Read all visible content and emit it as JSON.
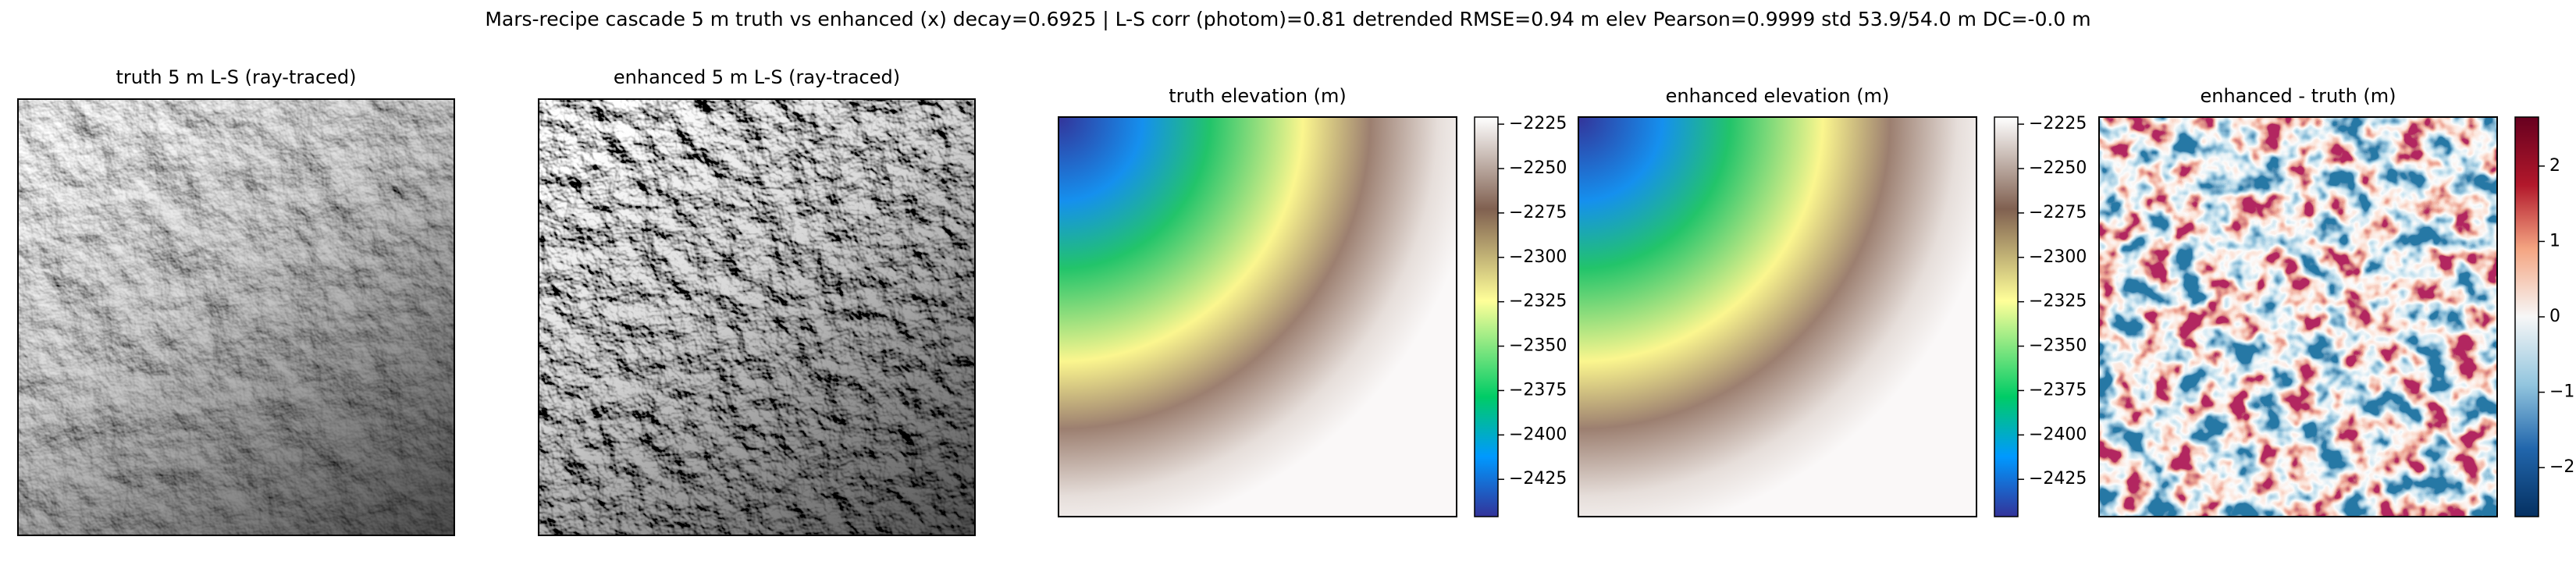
{
  "title": "Mars-recipe cascade 5 m truth vs enhanced (x) decay=0.6925  |  L-S corr (photom)=0.81  detrended RMSE=0.94 m  elev Pearson=0.9999  std 53.9/54.0 m  DC=-0.0 m",
  "panels": [
    {
      "title": "truth 5 m L-S (ray-traced)"
    },
    {
      "title": "enhanced 5 m L-S (ray-traced)"
    },
    {
      "title": "truth elevation (m)"
    },
    {
      "title": "enhanced elevation (m)"
    },
    {
      "title": "enhanced - truth (m)"
    }
  ],
  "colorbars": [
    {
      "lim": [
        -2446,
        -2221
      ],
      "ticks": [
        {
          "value": -2225,
          "label": "−2225"
        },
        {
          "value": -2250,
          "label": "−2250"
        },
        {
          "value": -2275,
          "label": "−2275"
        },
        {
          "value": -2300,
          "label": "−2300"
        },
        {
          "value": -2325,
          "label": "−2325"
        },
        {
          "value": -2350,
          "label": "−2350"
        },
        {
          "value": -2375,
          "label": "−2375"
        },
        {
          "value": -2400,
          "label": "−2400"
        },
        {
          "value": -2425,
          "label": "−2425"
        }
      ]
    },
    {
      "lim": [
        -2446,
        -2221
      ],
      "ticks": [
        {
          "value": -2225,
          "label": "−2225"
        },
        {
          "value": -2250,
          "label": "−2250"
        },
        {
          "value": -2275,
          "label": "−2275"
        },
        {
          "value": -2300,
          "label": "−2300"
        },
        {
          "value": -2325,
          "label": "−2325"
        },
        {
          "value": -2350,
          "label": "−2350"
        },
        {
          "value": -2375,
          "label": "−2375"
        },
        {
          "value": -2400,
          "label": "−2400"
        },
        {
          "value": -2425,
          "label": "−2425"
        }
      ]
    },
    {
      "lim": [
        -2.65,
        2.65
      ],
      "ticks": [
        2,
        1,
        0,
        {
          "value": -1,
          "label": "−1"
        },
        {
          "value": -2,
          "label": "−2"
        }
      ]
    }
  ]
}
